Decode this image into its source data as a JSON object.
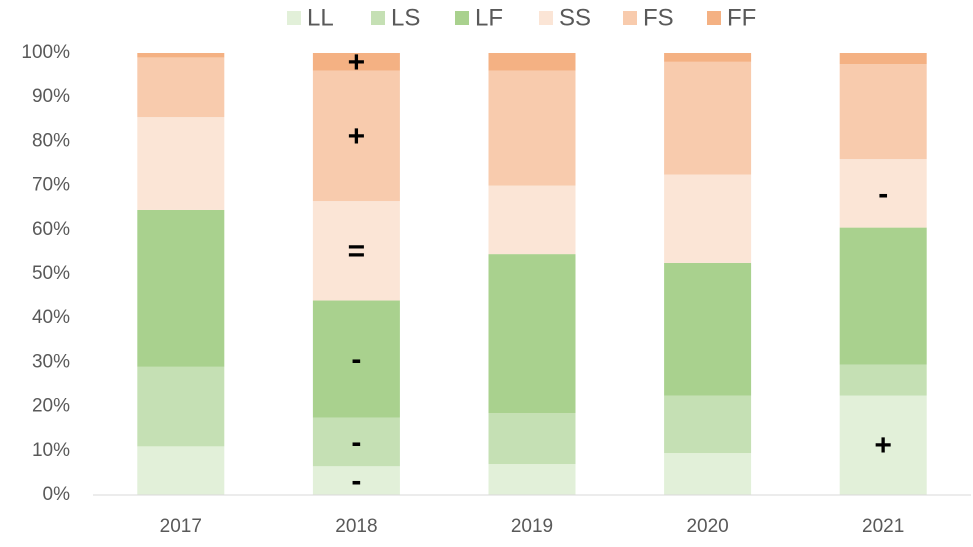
{
  "chart_data": {
    "type": "stacked_bar",
    "categories": [
      "2017",
      "2018",
      "2019",
      "2020",
      "2021"
    ],
    "series": [
      {
        "name": "LL",
        "color": "#e2f0d9",
        "values": [
          11,
          6.5,
          7,
          9.5,
          22.5
        ]
      },
      {
        "name": "LS",
        "color": "#c5e0b4",
        "values": [
          18,
          11,
          11.5,
          13,
          7
        ]
      },
      {
        "name": "LF",
        "color": "#a9d18e",
        "values": [
          35.5,
          26.5,
          36,
          30,
          31
        ]
      },
      {
        "name": "SS",
        "color": "#fbe5d6",
        "values": [
          21,
          22.5,
          15.5,
          20,
          15.5
        ]
      },
      {
        "name": "FS",
        "color": "#f8cbad",
        "values": [
          13.5,
          29.5,
          26,
          25.5,
          21.5
        ]
      },
      {
        "name": "FF",
        "color": "#f4b183",
        "values": [
          1,
          4,
          4,
          2,
          2.5
        ]
      }
    ],
    "ylim": [
      0,
      100
    ],
    "yticks": [
      {
        "value": 0,
        "label": "0%"
      },
      {
        "value": 10,
        "label": "10%"
      },
      {
        "value": 20,
        "label": "20%"
      },
      {
        "value": 30,
        "label": "30%"
      },
      {
        "value": 40,
        "label": "40%"
      },
      {
        "value": 50,
        "label": "50%"
      },
      {
        "value": 60,
        "label": "60%"
      },
      {
        "value": 70,
        "label": "70%"
      },
      {
        "value": 80,
        "label": "80%"
      },
      {
        "value": 90,
        "label": "90%"
      },
      {
        "value": 100,
        "label": "100%"
      }
    ],
    "grid": false,
    "legend": "top",
    "annotations": [
      {
        "text": "+",
        "category": "2018",
        "series": "FF"
      },
      {
        "text": "+",
        "category": "2018",
        "series": "FS"
      },
      {
        "text": "=",
        "category": "2018",
        "series": "SS"
      },
      {
        "text": "-",
        "category": "2018",
        "series": "LF"
      },
      {
        "text": "-",
        "category": "2018",
        "series": "LS"
      },
      {
        "text": "-",
        "category": "2018",
        "series": "LL"
      },
      {
        "text": "-",
        "category": "2021",
        "series": "SS"
      },
      {
        "text": "+",
        "category": "2021",
        "series": "LL"
      }
    ]
  }
}
